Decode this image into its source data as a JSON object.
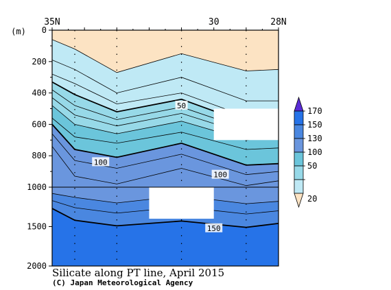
{
  "chart_data": {
    "type": "contour",
    "title": "Silicate along PT line, April 2015",
    "credit": "(C) Japan Meteorological Agency",
    "y_unit": "(m)",
    "x_top_ticks": [
      "35N",
      "30",
      "28N"
    ],
    "y_ticks": [
      "0",
      "200",
      "400",
      "600",
      "800",
      "1000",
      "1500",
      "2000"
    ],
    "y_ticks_upper": [
      0,
      200,
      400,
      600,
      800,
      1000
    ],
    "y_ticks_lower": [
      1000,
      1500,
      2000
    ],
    "x_range": [
      35,
      28
    ],
    "y_range": [
      0,
      2000
    ],
    "y_scale_break": 1000,
    "station_lat": [
      34.3,
      33.0,
      31.0,
      29.0
    ],
    "contour_labels": [
      {
        "text": "50",
        "lat": 31.0,
        "depth": 480
      },
      {
        "text": "100",
        "lat": 33.5,
        "depth": 840
      },
      {
        "text": "100",
        "lat": 29.8,
        "depth": 920
      },
      {
        "text": "150",
        "lat": 30.0,
        "depth": 1520
      }
    ],
    "levels": [
      {
        "value": 20,
        "depth": [
          60,
          120,
          270,
          150,
          260,
          250
        ],
        "color": "#bfe9f5"
      },
      {
        "value": 30,
        "depth": [
          190,
          250,
          400,
          300,
          450,
          450
        ]
      },
      {
        "value": 40,
        "depth": [
          280,
          340,
          470,
          400,
          550,
          530
        ]
      },
      {
        "value": 50,
        "depth": [
          330,
          410,
          520,
          440,
          590,
          570
        ],
        "color": "#97d9e8"
      },
      {
        "value": 60,
        "depth": [
          380,
          480,
          570,
          490,
          630,
          600
        ]
      },
      {
        "value": 70,
        "depth": [
          430,
          540,
          610,
          530,
          660,
          630
        ]
      },
      {
        "value": 80,
        "depth": [
          480,
          600,
          660,
          580,
          700,
          670
        ],
        "color": "#6bc5db"
      },
      {
        "value": 90,
        "depth": [
          560,
          680,
          720,
          650,
          760,
          750
        ]
      },
      {
        "value": 100,
        "depth": [
          600,
          760,
          810,
          720,
          860,
          850
        ],
        "color": "#6a96de"
      },
      {
        "value": 110,
        "depth": [
          660,
          830,
          880,
          790,
          920,
          900
        ]
      },
      {
        "value": 120,
        "depth": [
          740,
          930,
          980,
          880,
          990,
          960
        ]
      },
      {
        "value": 130,
        "depth": [
          1080,
          1130,
          1200,
          1110,
          1210,
          1180
        ],
        "color": "#4a87e0"
      },
      {
        "value": 140,
        "depth": [
          1170,
          1260,
          1330,
          1250,
          1340,
          1300
        ]
      },
      {
        "value": 150,
        "depth": [
          1270,
          1420,
          1490,
          1430,
          1510,
          1460
        ],
        "color": "#2673e8"
      }
    ],
    "levels_lat": [
      35,
      34.3,
      33.0,
      31.0,
      29.0,
      28
    ],
    "top_fill": "#fce3c3",
    "legend": {
      "labels": [
        "170",
        "150",
        "130",
        "100",
        "50",
        "20"
      ],
      "colors": [
        "#2673e8",
        "#4a87e0",
        "#6a96de",
        "#6bc5db",
        "#97d9e8",
        "#bfe9f5"
      ],
      "over_color": "#5a2cd6",
      "under_color": "#fce3c3"
    },
    "missing_areas": [
      {
        "lat": [
          30.0,
          28.0
        ],
        "depth": [
          500,
          700
        ]
      },
      {
        "lat": [
          32.0,
          30.0
        ],
        "depth": [
          1000,
          1400
        ]
      }
    ]
  }
}
